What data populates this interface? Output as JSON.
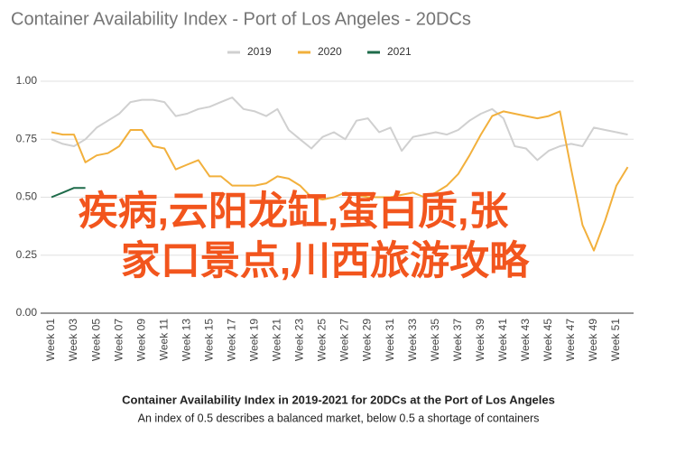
{
  "chart_data": {
    "type": "line",
    "title": "Container Availability Index - Port of Los Angeles - 20DCs",
    "categories": [
      "Week 01",
      null,
      "Week 03",
      null,
      "Week 05",
      null,
      "Week 07",
      null,
      "Week 09",
      null,
      "Week 11",
      null,
      "Week 13",
      null,
      "Week 15",
      null,
      "Week 17",
      null,
      "Week 19",
      null,
      "Week 21",
      null,
      "Week 23",
      null,
      "Week 25",
      null,
      "Week 27",
      null,
      "Week 29",
      null,
      "Week 31",
      null,
      "Week 33",
      null,
      "Week 35",
      null,
      "Week 37",
      null,
      "Week 39",
      null,
      "Week 41",
      null,
      "Week 43",
      null,
      "Week 45",
      null,
      "Week 47",
      null,
      "Week 49",
      null,
      "Week 51",
      null
    ],
    "series": [
      {
        "name": "2019",
        "color": "#d0d0d0",
        "values": [
          0.75,
          0.73,
          0.72,
          0.75,
          0.8,
          0.83,
          0.86,
          0.91,
          0.92,
          0.92,
          0.91,
          0.85,
          0.86,
          0.88,
          0.89,
          0.91,
          0.93,
          0.88,
          0.87,
          0.85,
          0.88,
          0.79,
          0.75,
          0.71,
          0.76,
          0.78,
          0.75,
          0.83,
          0.84,
          0.78,
          0.8,
          0.7,
          0.76,
          0.77,
          0.78,
          0.77,
          0.79,
          0.83,
          0.86,
          0.88,
          0.84,
          0.72,
          0.71,
          0.66,
          0.7,
          0.72,
          0.73,
          0.72,
          0.8,
          0.79,
          0.78,
          0.77
        ]
      },
      {
        "name": "2020",
        "color": "#f2b03c",
        "values": [
          0.78,
          0.77,
          0.77,
          0.65,
          0.68,
          0.69,
          0.72,
          0.79,
          0.79,
          0.72,
          0.71,
          0.62,
          0.64,
          0.66,
          0.59,
          0.59,
          0.55,
          0.55,
          0.55,
          0.56,
          0.59,
          0.58,
          0.55,
          0.5,
          0.49,
          0.5,
          0.52,
          0.51,
          0.5,
          0.5,
          0.5,
          0.51,
          0.52,
          0.5,
          0.52,
          0.55,
          0.6,
          0.68,
          0.77,
          0.85,
          0.87,
          0.86,
          0.85,
          0.84,
          0.85,
          0.87,
          0.62,
          0.38,
          0.27,
          0.4,
          0.55,
          0.63
        ]
      },
      {
        "name": "2021",
        "color": "#1e6b4a",
        "values": [
          0.5,
          0.52,
          0.54,
          0.54,
          null,
          null,
          null,
          null,
          null,
          null,
          null,
          null,
          null,
          null,
          null,
          null,
          null,
          null,
          null,
          null,
          null,
          null,
          null,
          null,
          null,
          null,
          null,
          null,
          null,
          null,
          null,
          null,
          null,
          null,
          null,
          null,
          null,
          null,
          null,
          null,
          null,
          null,
          null,
          null,
          null,
          null,
          null,
          null,
          null,
          null,
          null,
          null
        ]
      }
    ],
    "ylim": [
      0,
      1
    ],
    "yticks": [
      {
        "value": 0,
        "label": "0.00"
      },
      {
        "value": 0.25,
        "label": "0.25"
      },
      {
        "value": 0.5,
        "label": "0.50"
      },
      {
        "value": 0.75,
        "label": "0.75"
      },
      {
        "value": 1,
        "label": "1.00"
      }
    ],
    "grid": true,
    "caption": "Container Availability Index in 2019-2021 for 20DCs at the Port of Los Angeles",
    "subcaption": "An index of 0.5 describes a balanced market, below 0.5 a shortage of containers"
  },
  "overlay": [
    "疾病,云阳龙缸,蛋白质,张",
    "家口景点,川西旅游攻略"
  ]
}
